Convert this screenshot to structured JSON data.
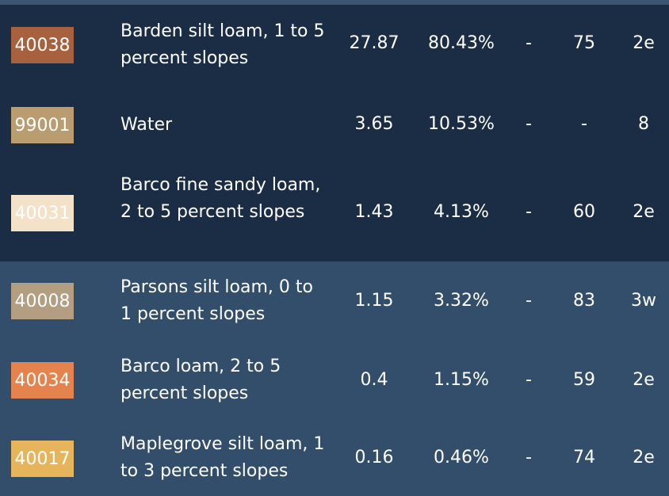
{
  "rows": [
    {
      "code": "40038",
      "swatch_color": "#a8613e",
      "name": "Barden silt loam, 1 to 5 percent slopes",
      "acres": "27.87",
      "percent": "80.43%",
      "col_a": "-",
      "productivity": "75",
      "capability": "2e"
    },
    {
      "code": "99001",
      "swatch_color": "#b99d70",
      "name": "Water",
      "acres": "3.65",
      "percent": "10.53%",
      "col_a": "-",
      "productivity": "-",
      "capability": "8"
    },
    {
      "code": "40031",
      "swatch_color": "#f3e2c8",
      "name": "Barco fine sandy loam, 2 to 5 percent slopes",
      "acres": "1.43",
      "percent": "4.13%",
      "col_a": "-",
      "productivity": "60",
      "capability": "2e"
    },
    {
      "code": "40008",
      "swatch_color": "#b49e82",
      "name": "Parsons silt loam, 0 to 1 percent slopes",
      "acres": "1.15",
      "percent": "3.32%",
      "col_a": "-",
      "productivity": "83",
      "capability": "3w"
    },
    {
      "code": "40034",
      "swatch_color": "#e4834d",
      "name": "Barco loam, 2 to 5 percent slopes",
      "acres": "0.4",
      "percent": "1.15%",
      "col_a": "-",
      "productivity": "59",
      "capability": "2e"
    },
    {
      "code": "40017",
      "swatch_color": "#e6b55b",
      "name": "Maplegrove silt loam, 1 to 3 percent slopes",
      "acres": "0.16",
      "percent": "0.46%",
      "col_a": "-",
      "productivity": "74",
      "capability": "2e"
    }
  ]
}
